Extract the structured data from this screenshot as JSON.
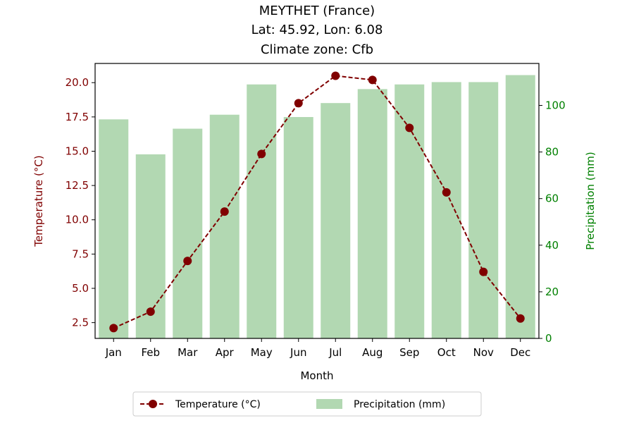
{
  "chart_data": {
    "type": "bar+line",
    "title_lines": [
      "MEYTHET (France)",
      "Lat: 45.92, Lon: 6.08",
      "Climate zone: Cfb"
    ],
    "xlabel": "Month",
    "categories": [
      "Jan",
      "Feb",
      "Mar",
      "Apr",
      "May",
      "Jun",
      "Jul",
      "Aug",
      "Sep",
      "Oct",
      "Nov",
      "Dec"
    ],
    "temperature": {
      "name": "Temperature (°C)",
      "axis_label": "Temperature (°C)",
      "values": [
        2.1,
        3.3,
        7.0,
        10.6,
        14.8,
        18.5,
        20.5,
        20.2,
        16.7,
        12.0,
        6.2,
        2.8
      ],
      "ylim": [
        1.35,
        21.4
      ],
      "ticks": [
        2.5,
        5.0,
        7.5,
        10.0,
        12.5,
        15.0,
        17.5,
        20.0
      ],
      "tick_labels": [
        "2.5",
        "5.0",
        "7.5",
        "10.0",
        "12.5",
        "15.0",
        "17.5",
        "20.0"
      ],
      "color": "#800000",
      "style": "dashed line with circle markers"
    },
    "precipitation": {
      "name": "Precipitation (mm)",
      "axis_label": "Precipitation (mm)",
      "values": [
        94,
        79,
        90,
        96,
        109,
        95,
        101,
        107,
        109,
        110,
        110,
        113
      ],
      "ylim": [
        0,
        118
      ],
      "ticks": [
        0,
        20,
        40,
        60,
        80,
        100
      ],
      "tick_labels": [
        "0",
        "20",
        "40",
        "60",
        "80",
        "100"
      ],
      "color": "#b2d8b2",
      "axis_color": "#008000"
    },
    "legend": {
      "placement": "bottom-center",
      "entries": [
        "Temperature (°C)",
        "Precipitation (mm)"
      ]
    },
    "grid": false
  }
}
